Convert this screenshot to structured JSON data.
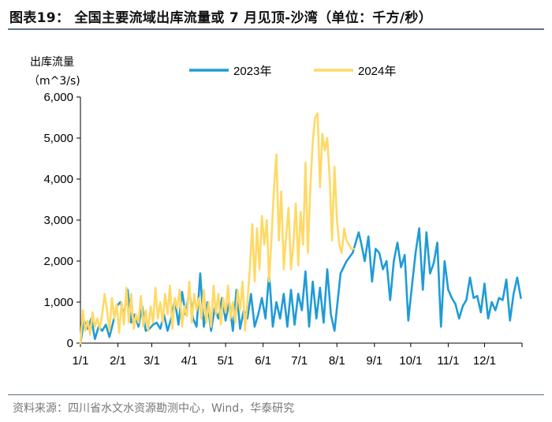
{
  "figure": {
    "title": "图表19： 全国主要流域出库流量或 7 月见顶-沙湾（单位：千方/秒）",
    "source": "资料来源：四川省水文水资源勘测中心，Wind，华泰研究"
  },
  "colors": {
    "series_2023": "#1f9bd7",
    "series_2024": "#ffd966",
    "axis": "#000000",
    "rule": "#5b6f86"
  },
  "chart_data": {
    "type": "line",
    "title": "全国主要流域出库流量或 7 月见顶-沙湾",
    "ylabel_line1": "出库流量",
    "ylabel_line2": "（m^3/s)",
    "ylim": [
      0,
      6000
    ],
    "yticks": [
      0,
      1000,
      2000,
      3000,
      4000,
      5000,
      6000
    ],
    "ytick_labels": [
      "0",
      "1,000",
      "2,000",
      "3,000",
      "4,000",
      "5,000",
      "6,000"
    ],
    "xlim": [
      0,
      365
    ],
    "xticks": [
      0,
      31,
      59,
      90,
      120,
      151,
      181,
      212,
      243,
      273,
      304,
      334
    ],
    "xtick_labels": [
      "1/1",
      "2/1",
      "3/1",
      "4/1",
      "5/1",
      "6/1",
      "7/1",
      "8/1",
      "9/1",
      "10/1",
      "11/1",
      "12/1"
    ],
    "legend_position": "top",
    "series": [
      {
        "name": "2023年",
        "color": "#1f9bd7",
        "x": [
          0,
          3,
          6,
          9,
          12,
          15,
          18,
          21,
          24,
          27,
          30,
          33,
          36,
          39,
          42,
          45,
          48,
          51,
          54,
          57,
          60,
          63,
          66,
          69,
          72,
          75,
          78,
          81,
          84,
          87,
          90,
          93,
          96,
          99,
          102,
          105,
          108,
          111,
          114,
          117,
          120,
          123,
          126,
          129,
          132,
          135,
          138,
          141,
          144,
          147,
          150,
          153,
          156,
          159,
          162,
          165,
          168,
          171,
          174,
          177,
          180,
          183,
          186,
          189,
          192,
          195,
          198,
          201,
          204,
          207,
          210,
          215,
          220,
          225,
          230,
          232,
          235,
          238,
          241,
          244,
          247,
          250,
          253,
          256,
          259,
          262,
          265,
          268,
          271,
          274,
          277,
          280,
          283,
          286,
          289,
          292,
          295,
          298,
          301,
          304,
          307,
          310,
          313,
          316,
          319,
          322,
          325,
          328,
          331,
          334,
          337,
          340,
          343,
          346,
          349,
          352,
          355,
          358,
          361,
          364
        ],
        "y": [
          0,
          550,
          350,
          600,
          100,
          400,
          300,
          450,
          150,
          500,
          900,
          1000,
          700,
          1300,
          500,
          700,
          400,
          900,
          300,
          350,
          450,
          500,
          350,
          700,
          300,
          600,
          1050,
          450,
          1250,
          700,
          1300,
          600,
          400,
          1700,
          400,
          1000,
          300,
          850,
          600,
          1100,
          550,
          1000,
          300,
          1300,
          350,
          800,
          600,
          1200,
          400,
          700,
          1100,
          600,
          1700,
          400,
          1000,
          600,
          1200,
          400,
          1300,
          450,
          1200,
          800,
          1750,
          400,
          1500,
          600,
          1350,
          500,
          1800,
          700,
          300,
          1700,
          2000,
          2200,
          2700,
          2450,
          2000,
          2600,
          1500,
          2300,
          2200,
          1800,
          2000,
          1050,
          2000,
          2450,
          1850,
          2150,
          550,
          1400,
          2200,
          2800,
          1300,
          2700,
          1700,
          1950,
          2450,
          400,
          2000,
          1300,
          1100,
          950,
          600,
          900,
          1050,
          1600,
          1100,
          1150,
          750,
          1450,
          600,
          1000,
          800,
          1100,
          1050,
          1550,
          550,
          1200,
          1600,
          1100
        ]
      },
      {
        "name": "2024年",
        "color": "#ffd966",
        "x": [
          0,
          2,
          4,
          6,
          8,
          10,
          12,
          14,
          16,
          18,
          20,
          22,
          24,
          26,
          28,
          30,
          32,
          34,
          36,
          38,
          40,
          42,
          44,
          46,
          48,
          50,
          52,
          54,
          56,
          58,
          60,
          62,
          64,
          66,
          68,
          70,
          72,
          74,
          76,
          78,
          80,
          82,
          84,
          86,
          88,
          90,
          92,
          94,
          96,
          98,
          100,
          102,
          104,
          106,
          108,
          110,
          112,
          114,
          116,
          118,
          120,
          122,
          124,
          126,
          128,
          130,
          132,
          134,
          136,
          138,
          140,
          142,
          144,
          146,
          148,
          150,
          152,
          154,
          156,
          158,
          160,
          162,
          164,
          166,
          168,
          170,
          172,
          174,
          176,
          178,
          180,
          182,
          184,
          186,
          188,
          190,
          192,
          194,
          196,
          198,
          200,
          202,
          204,
          206,
          208,
          210,
          212,
          214,
          216,
          218,
          220,
          222,
          224,
          226
        ],
        "y": [
          0,
          800,
          300,
          550,
          200,
          750,
          400,
          600,
          350,
          700,
          1200,
          800,
          300,
          1100,
          600,
          950,
          250,
          1000,
          450,
          1350,
          500,
          1200,
          350,
          700,
          500,
          1150,
          400,
          800,
          300,
          900,
          500,
          1350,
          600,
          1000,
          500,
          1200,
          700,
          1400,
          350,
          1100,
          850,
          1300,
          400,
          900,
          650,
          1500,
          500,
          1200,
          800,
          1100,
          600,
          1300,
          500,
          1000,
          400,
          1400,
          700,
          1200,
          450,
          1100,
          750,
          1400,
          600,
          1000,
          500,
          1300,
          800,
          1500,
          300,
          1000,
          1800,
          2900,
          1500,
          2800,
          1800,
          3100,
          2400,
          3000,
          1500,
          2600,
          3800,
          4600,
          2500,
          3700,
          1800,
          2600,
          3300,
          1800,
          2400,
          3400,
          1900,
          3200,
          2400,
          4400,
          2200,
          3800,
          4900,
          5500,
          5600,
          3800,
          5100,
          4700,
          5000,
          4000,
          2500,
          4300,
          3000,
          2400,
          2200,
          2800,
          2500,
          2400,
          2300,
          2300
        ]
      }
    ]
  }
}
